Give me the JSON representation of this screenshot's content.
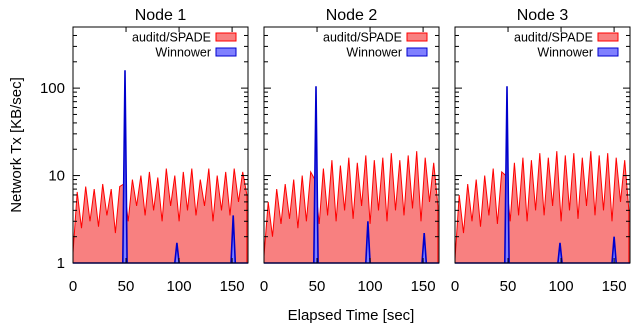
{
  "chart_data": [
    {
      "type": "area",
      "title": "Node 1",
      "ylabel": "Network Tx [KB/sec]",
      "xlabel": "Elapsed Time [sec]",
      "x_ticks": [
        0,
        50,
        100,
        150
      ],
      "y_ticks": [
        1,
        10,
        100
      ],
      "y_scale": "log",
      "xlim": [
        0,
        165
      ],
      "ylim": [
        1,
        500
      ],
      "grid": false,
      "legend_position": "top-right",
      "series": [
        {
          "name": "auditd/SPADE",
          "color": "#ff0000",
          "fill": "#f88080",
          "style": "filled-area",
          "x": [
            0,
            4,
            8,
            12,
            16,
            20,
            24,
            28,
            32,
            36,
            40,
            44,
            48,
            52,
            56,
            60,
            64,
            68,
            72,
            76,
            80,
            84,
            88,
            92,
            96,
            100,
            104,
            108,
            112,
            116,
            120,
            124,
            128,
            132,
            136,
            140,
            144,
            148,
            152,
            156,
            160,
            164
          ],
          "y": [
            1.3,
            6.5,
            2.5,
            7.5,
            3.0,
            7.0,
            2.6,
            8.0,
            3.5,
            7.0,
            2.2,
            7.5,
            8.0,
            3.0,
            9.0,
            4.5,
            10.0,
            3.5,
            11.0,
            4.0,
            9.5,
            3.0,
            12.0,
            4.5,
            10.0,
            3.0,
            11.0,
            4.0,
            12.0,
            3.5,
            9.0,
            4.5,
            12.0,
            3.0,
            10.0,
            4.0,
            11.0,
            3.5,
            12.0,
            5.0,
            11.0,
            6.0
          ]
        },
        {
          "name": "Winnower",
          "color": "#0000cc",
          "fill": "#8080ff",
          "style": "spikes",
          "x": [
            0,
            47,
            49,
            51,
            53,
            96,
            98,
            100,
            149,
            151,
            153,
            165
          ],
          "y": [
            1,
            1,
            160,
            1,
            1,
            1,
            1.7,
            1,
            1,
            3.5,
            1,
            1
          ]
        }
      ]
    },
    {
      "type": "area",
      "title": "Node 2",
      "x_ticks": [
        0,
        50,
        100,
        150
      ],
      "y_scale": "log",
      "xlim": [
        0,
        165
      ],
      "ylim": [
        1,
        500
      ],
      "grid": false,
      "legend_position": "top-right",
      "series": [
        {
          "name": "auditd/SPADE",
          "color": "#ff0000",
          "fill": "#f88080",
          "style": "filled-area",
          "x": [
            0,
            4,
            8,
            12,
            16,
            20,
            24,
            28,
            32,
            36,
            40,
            44,
            48,
            52,
            56,
            60,
            64,
            68,
            72,
            76,
            80,
            84,
            88,
            92,
            96,
            100,
            104,
            108,
            112,
            116,
            120,
            124,
            128,
            132,
            136,
            140,
            144,
            148,
            152,
            156,
            160,
            164
          ],
          "y": [
            1.2,
            5.0,
            2.0,
            7.0,
            2.8,
            8.0,
            3.2,
            9.0,
            2.5,
            10.0,
            3.0,
            11.0,
            9.0,
            2.8,
            12.0,
            3.5,
            15.0,
            3.0,
            13.0,
            4.0,
            16.0,
            3.2,
            14.0,
            4.5,
            17.0,
            2.8,
            15.0,
            4.0,
            16.0,
            3.0,
            18.0,
            4.0,
            15.0,
            3.5,
            17.0,
            4.2,
            19.0,
            3.0,
            16.0,
            5.0,
            14.0,
            4.5
          ]
        },
        {
          "name": "Winnower",
          "color": "#0000cc",
          "fill": "#8080ff",
          "style": "spikes",
          "x": [
            0,
            47,
            49,
            51,
            53,
            96,
            98,
            100,
            149,
            151,
            153,
            165
          ],
          "y": [
            1,
            1,
            105,
            1,
            1,
            1,
            3.0,
            1,
            1,
            2.2,
            1,
            1
          ]
        }
      ]
    },
    {
      "type": "area",
      "title": "Node 3",
      "x_ticks": [
        0,
        50,
        100,
        150
      ],
      "y_scale": "log",
      "xlim": [
        0,
        165
      ],
      "ylim": [
        1,
        500
      ],
      "grid": false,
      "legend_position": "top-right",
      "series": [
        {
          "name": "auditd/SPADE",
          "color": "#ff0000",
          "fill": "#f88080",
          "style": "filled-area",
          "x": [
            0,
            4,
            8,
            12,
            16,
            20,
            24,
            28,
            32,
            36,
            40,
            44,
            48,
            52,
            56,
            60,
            64,
            68,
            72,
            76,
            80,
            84,
            88,
            92,
            96,
            100,
            104,
            108,
            112,
            116,
            120,
            124,
            128,
            132,
            136,
            140,
            144,
            148,
            152,
            156,
            160,
            164
          ],
          "y": [
            1.1,
            6.0,
            2.2,
            8.0,
            3.0,
            9.0,
            2.6,
            10.0,
            3.5,
            12.0,
            2.8,
            11.0,
            10.0,
            3.0,
            14.0,
            3.5,
            16.0,
            3.0,
            15.0,
            4.0,
            18.0,
            3.5,
            16.0,
            4.5,
            19.0,
            3.0,
            17.0,
            4.0,
            18.0,
            3.2,
            16.0,
            4.5,
            19.0,
            3.5,
            17.0,
            4.0,
            18.0,
            3.0,
            16.0,
            5.0,
            15.0,
            4.0
          ]
        },
        {
          "name": "Winnower",
          "color": "#0000cc",
          "fill": "#8080ff",
          "style": "spikes",
          "x": [
            0,
            47,
            49,
            51,
            53,
            97,
            99,
            101,
            148,
            150,
            152,
            165
          ],
          "y": [
            1,
            1,
            105,
            1,
            1,
            1,
            1.7,
            1,
            1,
            2.0,
            1,
            1
          ]
        }
      ]
    }
  ]
}
